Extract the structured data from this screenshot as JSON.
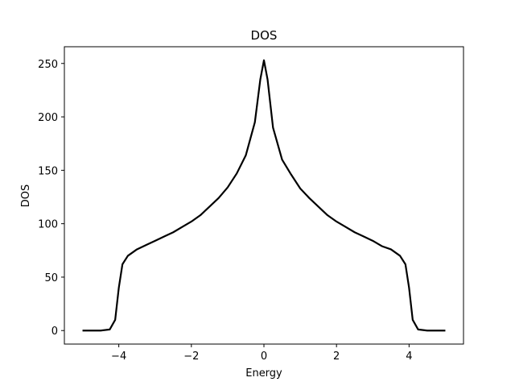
{
  "chart_data": {
    "type": "line",
    "title": "DOS",
    "x_label": "Energy",
    "y_label": "DOS",
    "x": [
      -5,
      -4.5,
      -4.25,
      -4.1,
      -4.0,
      -3.9,
      -3.75,
      -3.5,
      -3.25,
      -3.0,
      -2.75,
      -2.5,
      -2.25,
      -2.0,
      -1.75,
      -1.5,
      -1.25,
      -1.0,
      -0.75,
      -0.5,
      -0.25,
      -0.1,
      0,
      0.1,
      0.25,
      0.5,
      0.75,
      1.0,
      1.25,
      1.5,
      1.75,
      2.0,
      2.25,
      2.5,
      2.75,
      3.0,
      3.25,
      3.5,
      3.75,
      3.9,
      4.0,
      4.1,
      4.25,
      4.5,
      5
    ],
    "series": [
      {
        "color": "#000000",
        "values": [
          0,
          0,
          1,
          10,
          40,
          62,
          70,
          76,
          80,
          84,
          88,
          92,
          97,
          102,
          108,
          116,
          124,
          134,
          147,
          164,
          195,
          235,
          253,
          235,
          190,
          160,
          146,
          133,
          124,
          116,
          108,
          102,
          97,
          92,
          88,
          84,
          79,
          76,
          70,
          62,
          40,
          10,
          1,
          0,
          0
        ]
      }
    ],
    "xlim": [
      -5.5,
      5.5
    ],
    "ylim": [
      -12.65,
      265.65
    ],
    "xticks": [
      {
        "value": -4,
        "label": "−4"
      },
      {
        "value": -2,
        "label": "−2"
      },
      0,
      2,
      4
    ],
    "yticks": [
      0,
      50,
      100,
      150,
      200,
      250
    ]
  }
}
